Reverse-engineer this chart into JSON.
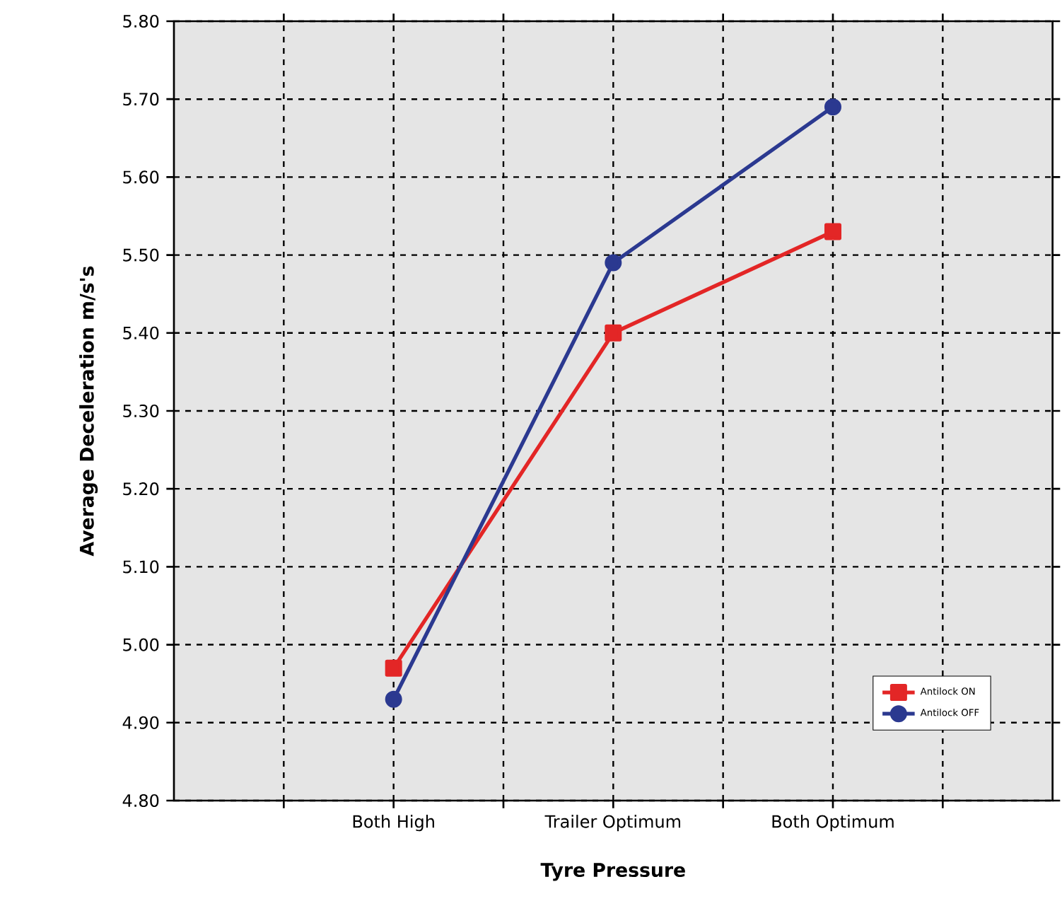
{
  "chart_data": {
    "type": "line",
    "xlabel": "Tyre Pressure",
    "ylabel": "Average Deceleration m/s's",
    "categories": [
      "Both High",
      "Trailer Optimum",
      "Both Optimum"
    ],
    "series": [
      {
        "name": "Antilock ON",
        "color": "#e32626",
        "marker": "square",
        "values": [
          4.97,
          5.4,
          5.53
        ]
      },
      {
        "name": "Antilock OFF",
        "color": "#2b3990",
        "marker": "circle",
        "values": [
          4.93,
          5.49,
          5.69
        ]
      }
    ],
    "ylim": [
      4.8,
      5.8
    ],
    "yticks": [
      {
        "value": 4.8,
        "label": "4.80"
      },
      {
        "value": 4.9,
        "label": "4.90"
      },
      {
        "value": 5.0,
        "label": "5.00"
      },
      {
        "value": 5.1,
        "label": "5.10"
      },
      {
        "value": 5.2,
        "label": "5.20"
      },
      {
        "value": 5.3,
        "label": "5.30"
      },
      {
        "value": 5.4,
        "label": "5.40"
      },
      {
        "value": 5.5,
        "label": "5.50"
      },
      {
        "value": 5.6,
        "label": "5.60"
      },
      {
        "value": 5.7,
        "label": "5.70"
      },
      {
        "value": 5.8,
        "label": "5.80"
      }
    ],
    "grid": true,
    "legend": "bottom right",
    "line_style": "solid"
  }
}
